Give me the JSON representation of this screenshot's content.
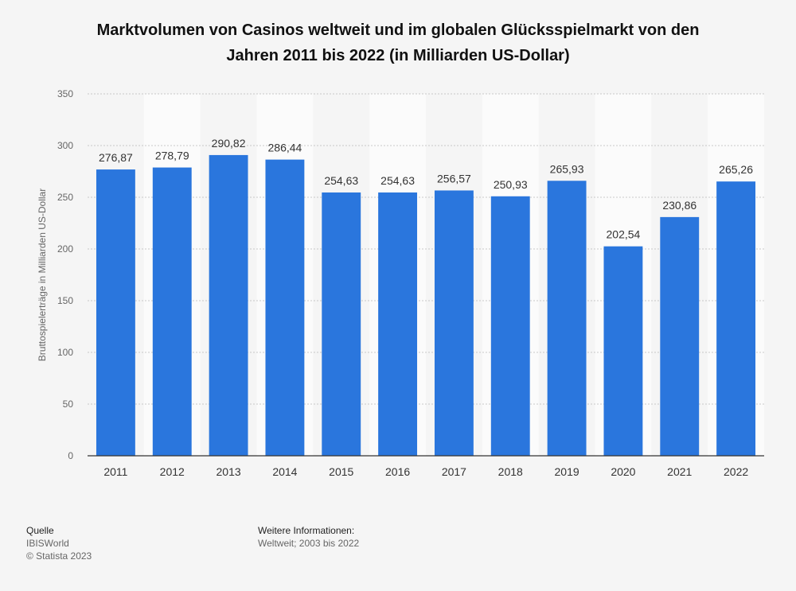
{
  "chart_data": {
    "type": "bar",
    "title": "Marktvolumen von Casinos weltweit und im globalen Glücksspielmarkt von den Jahren 2011 bis 2022 (in Milliarden US-Dollar)",
    "title_lines": [
      "Marktvolumen von Casinos weltweit und im globalen Glücksspielmarkt von den",
      "Jahren 2011 bis 2022 (in Milliarden US-Dollar)"
    ],
    "ylabel": "Bruttospielerträge in Milliarden US-Dollar",
    "xlabel": "",
    "ylim": [
      0,
      350
    ],
    "yticks": [
      0,
      50,
      100,
      150,
      200,
      250,
      300,
      350
    ],
    "categories": [
      "2011",
      "2012",
      "2013",
      "2014",
      "2015",
      "2016",
      "2017",
      "2018",
      "2019",
      "2020",
      "2021",
      "2022"
    ],
    "values": [
      276.87,
      278.79,
      290.82,
      286.44,
      254.63,
      254.63,
      256.57,
      250.93,
      265.93,
      202.54,
      230.86,
      265.26
    ],
    "value_labels": [
      "276,87",
      "278,79",
      "290,82",
      "286,44",
      "254,63",
      "254,63",
      "256,57",
      "250,93",
      "265,93",
      "202,54",
      "230,86",
      "265,26"
    ],
    "bar_color": "#2a76dd",
    "grid": true,
    "alternating_bands": true
  },
  "footer": {
    "source_heading": "Quelle",
    "source_name": "IBISWorld",
    "copyright": "© Statista 2023",
    "info_heading": "Weitere Informationen:",
    "info_text": "Weltweit; 2003 bis 2022"
  }
}
